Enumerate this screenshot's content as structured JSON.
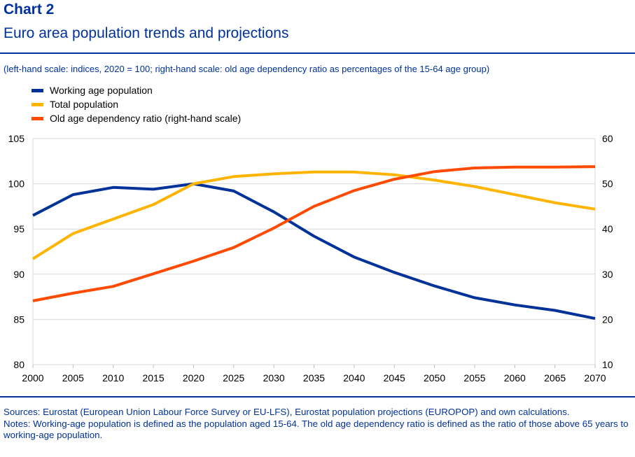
{
  "header": {
    "label": "Chart 2",
    "title": "Euro area population trends and projections",
    "subtitle": "(left-hand scale: indices, 2020 = 100; right-hand scale: old age dependency ratio as percentages of the 15-64 age group)"
  },
  "footer": {
    "sources": "Sources: Eurostat (European Union Labour Force Survey or EU-LFS), Eurostat population projections (EUROPOP) and own calculations.",
    "notes": "Notes: Working-age population is defined as the population aged 15-64. The old age dependency ratio is defined as the ratio of those above 65 years to working-age population."
  },
  "chart_data": {
    "type": "line",
    "x": [
      2000,
      2005,
      2010,
      2015,
      2020,
      2025,
      2030,
      2035,
      2040,
      2045,
      2050,
      2055,
      2060,
      2065,
      2070
    ],
    "xlim": [
      2000,
      2070
    ],
    "ylim": [
      80,
      105
    ],
    "ylim_right": [
      10,
      60
    ],
    "yticks": [
      80,
      85,
      90,
      95,
      100,
      105
    ],
    "yticks_right": [
      10,
      20,
      30,
      40,
      50,
      60
    ],
    "grid": true,
    "legend_position": "top-left",
    "series": [
      {
        "name": "Working age population",
        "axis": "left",
        "color": "#003299",
        "values": [
          96.5,
          98.8,
          99.6,
          99.4,
          100,
          99.2,
          96.9,
          94.2,
          91.9,
          90.2,
          88.7,
          87.4,
          86.6,
          86.0,
          85.1
        ]
      },
      {
        "name": "Total population",
        "axis": "left",
        "color": "#FFB400",
        "values": [
          91.7,
          94.5,
          96.1,
          97.7,
          100,
          100.8,
          101.1,
          101.3,
          101.3,
          101.0,
          100.4,
          99.7,
          98.8,
          97.9,
          97.2
        ]
      },
      {
        "name": "Old age dependency ratio (right-hand scale)",
        "axis": "right",
        "color": "#FF4B00",
        "values": [
          24.1,
          25.8,
          27.3,
          30.1,
          32.9,
          35.9,
          40.2,
          45.0,
          48.5,
          51.0,
          52.7,
          53.5,
          53.7,
          53.7,
          53.8
        ]
      }
    ]
  }
}
